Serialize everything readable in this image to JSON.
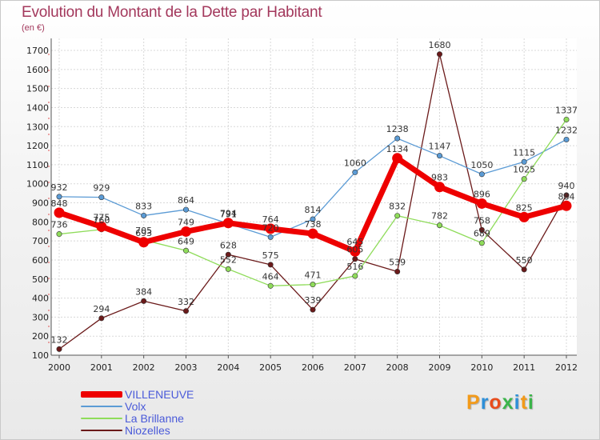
{
  "header": {
    "title": "Evolution du Montant de la Dette par Habitant",
    "unit": "(en €)"
  },
  "logo": {
    "letters": [
      "P",
      "r",
      "o",
      "x",
      "i",
      "t",
      "i"
    ],
    "colors": [
      "#f29a1a",
      "#2e8fd8",
      "#e84c1c",
      "#3bb44a",
      "#2e8fd8",
      "#f29a1a",
      "#3bb44a"
    ]
  },
  "chart_data": {
    "type": "line",
    "title": "Evolution du Montant de la Dette par Habitant",
    "ylabel": "(en €)",
    "xlabel": "",
    "x": [
      2000,
      2001,
      2002,
      2003,
      2004,
      2005,
      2006,
      2007,
      2008,
      2009,
      2010,
      2011,
      2012
    ],
    "ylim": [
      100,
      1700
    ],
    "yticks": [
      100,
      200,
      300,
      400,
      500,
      600,
      700,
      800,
      900,
      1000,
      1100,
      1200,
      1300,
      1400,
      1500,
      1600,
      1700
    ],
    "grid": true,
    "legend": "bottom-left",
    "series": [
      {
        "name": "VILLENEUVE",
        "color": "#ee0000",
        "values": [
          848,
          775,
          693,
          749,
          794,
          764,
          738,
          645,
          1134,
          983,
          896,
          825,
          884
        ]
      },
      {
        "name": "Volx",
        "color": "#5b9bd5",
        "values": [
          932,
          929,
          833,
          864,
          791,
          720,
          814,
          1060,
          1238,
          1147,
          1050,
          1115,
          1232
        ]
      },
      {
        "name": "La Brillanne",
        "color": "#8fdc5a",
        "values": [
          736,
          760,
          705,
          649,
          552,
          464,
          471,
          516,
          832,
          782,
          689,
          1025,
          1337
        ]
      },
      {
        "name": "Niozelles",
        "color": "#6b1a1a",
        "values": [
          132,
          294,
          384,
          332,
          628,
          575,
          339,
          605,
          539,
          1680,
          758,
          550,
          940
        ]
      }
    ]
  }
}
